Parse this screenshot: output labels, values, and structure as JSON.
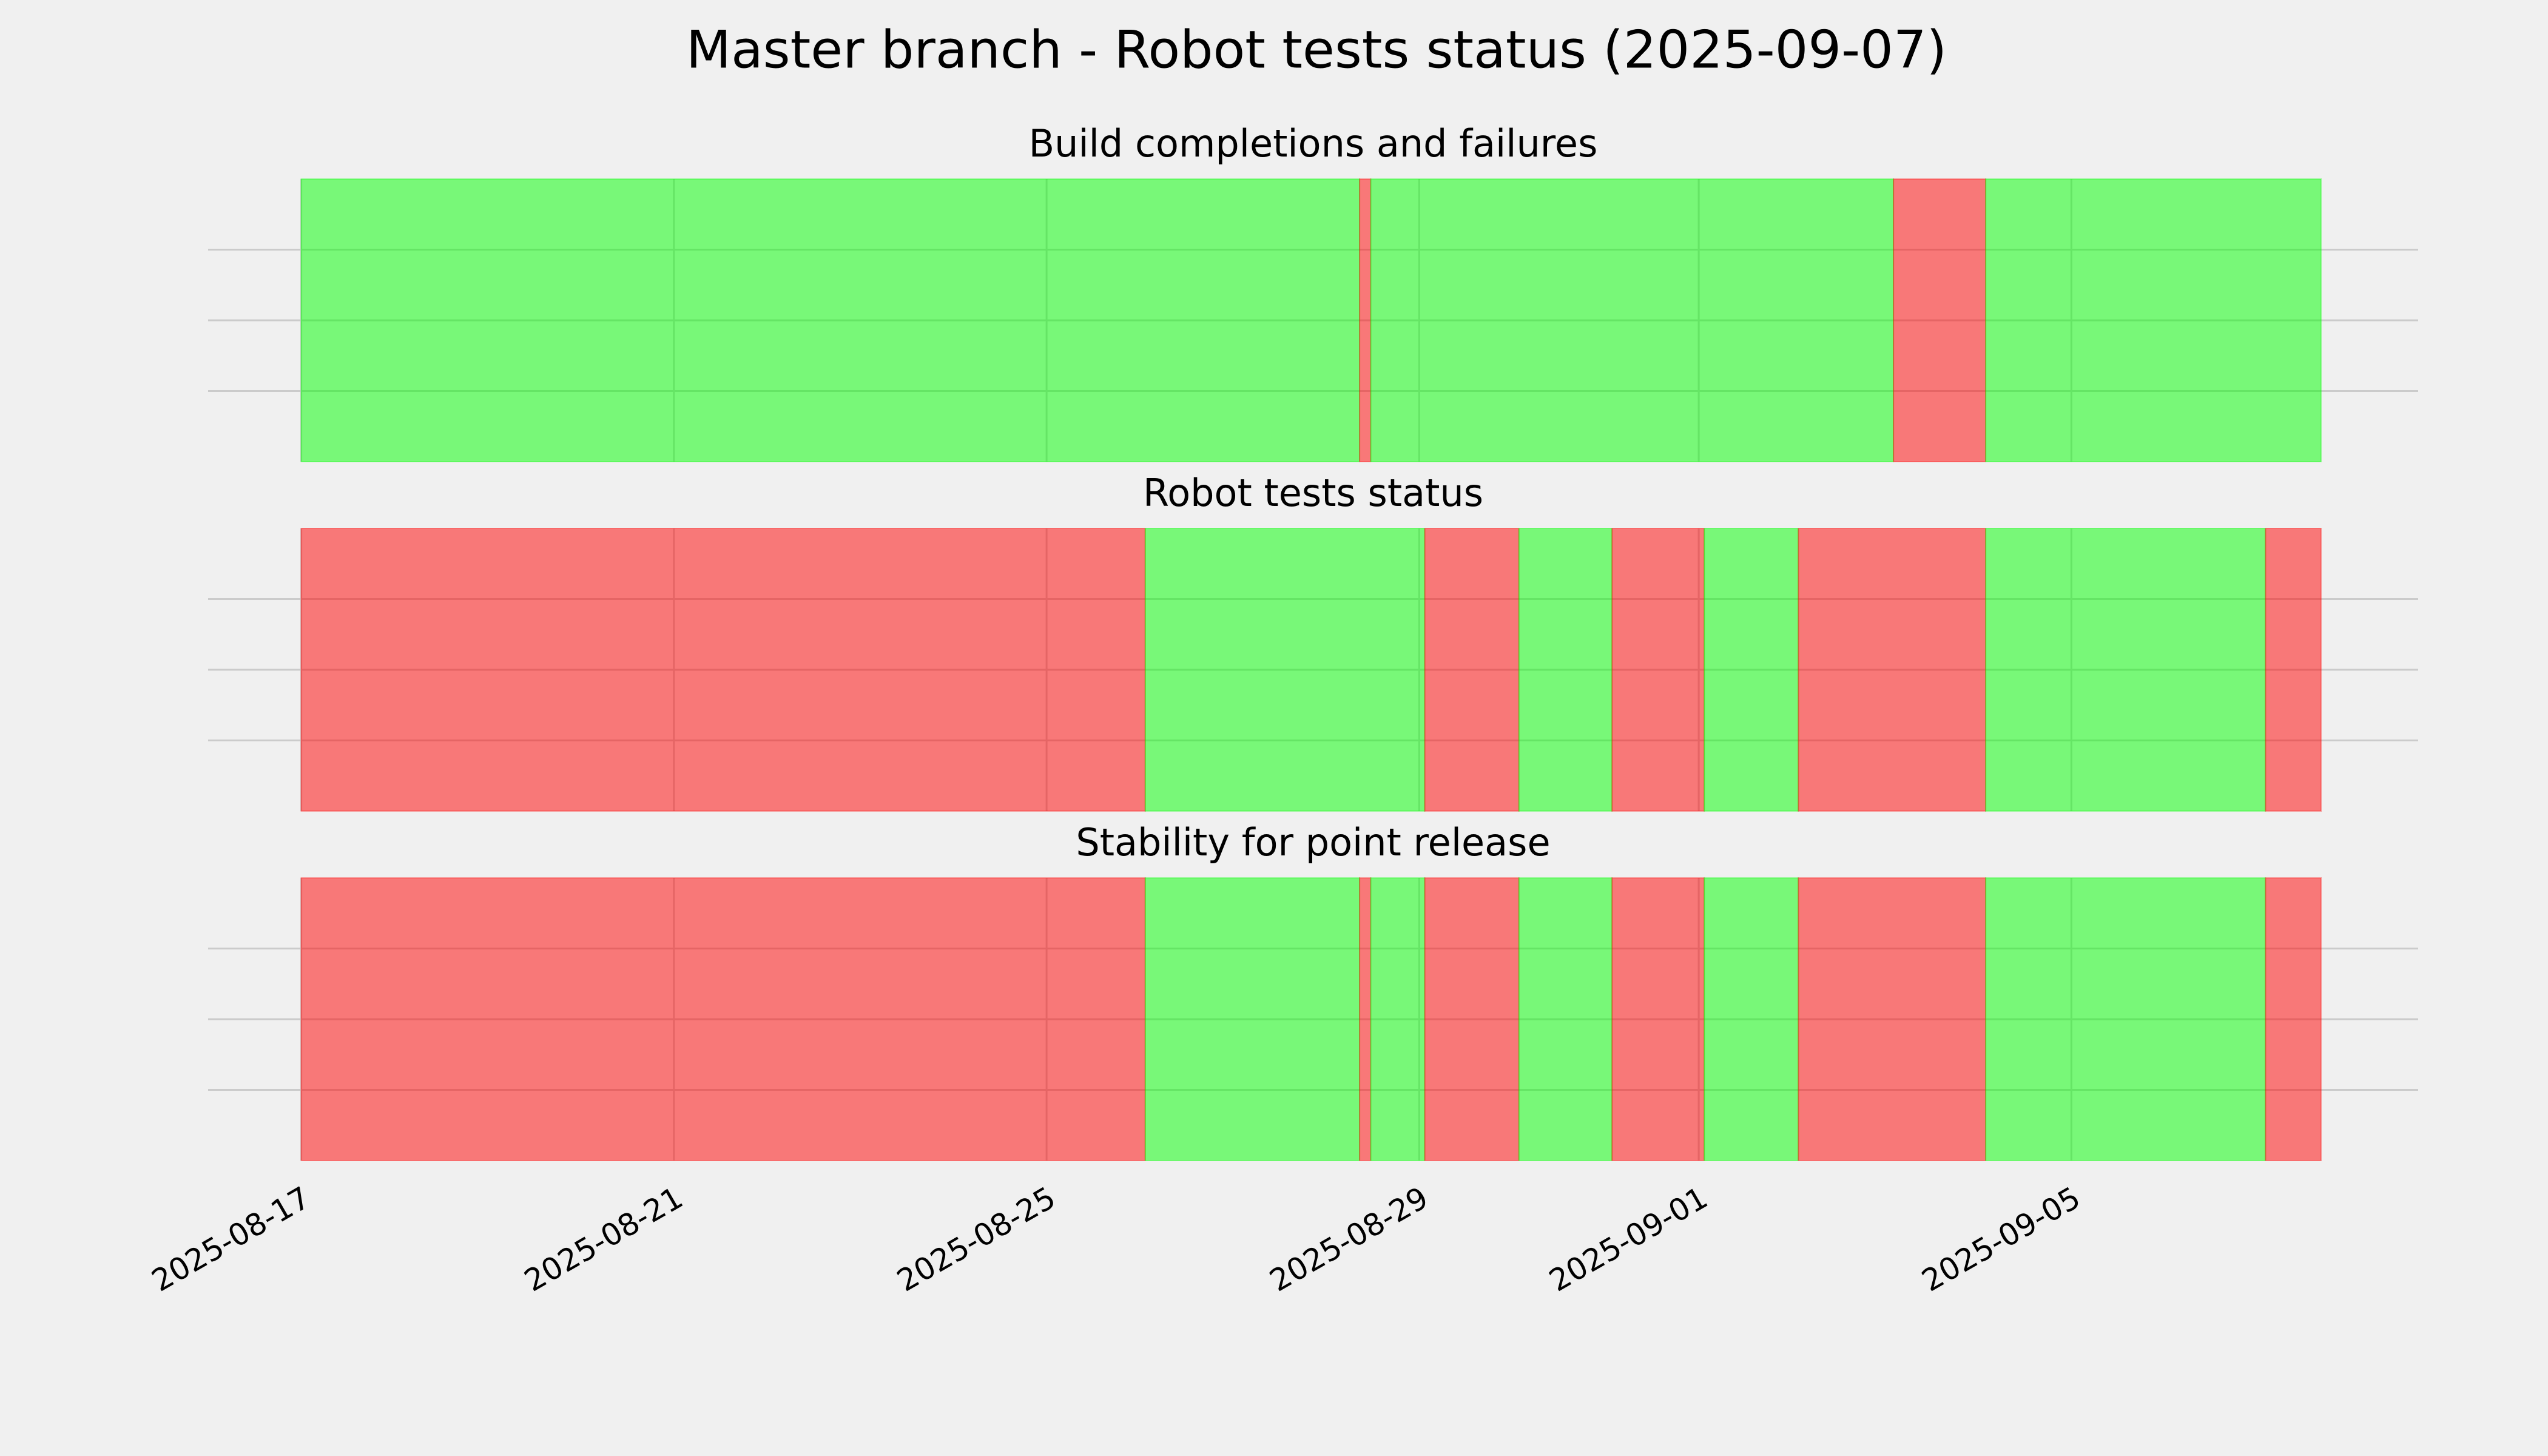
{
  "title": "Master branch - Robot tests status (2025-09-07)",
  "chart_data": [
    {
      "type": "timeline",
      "title": "Build completions and failures",
      "starts": [
        "2025-08-17T00:00",
        "2025-08-28T08:38",
        "2025-08-28T11:30",
        "2025-09-03T02:10",
        "2025-09-04T01:55"
      ],
      "ends": [
        "2025-08-28T08:38",
        "2025-08-28T11:30",
        "2025-09-03T02:10",
        "2025-09-04T01:55",
        "2025-09-07T16:20"
      ],
      "colors": [
        "#00ff00",
        "#ff0000",
        "#00ff00",
        "#ff0000",
        "#00ff00"
      ],
      "xlim": [
        "2025-08-16T00:00",
        "2025-09-08T17:20"
      ],
      "xticks": [
        "2025-08-17",
        "2025-08-21",
        "2025-08-25",
        "2025-08-29",
        "2025-09-01",
        "2025-09-05"
      ],
      "show_xtick_labels": false,
      "ylim": [
        0,
        1
      ],
      "yticks": [
        0.25,
        0.5,
        0.75
      ],
      "show_ytick_labels": false,
      "grid": true
    },
    {
      "type": "timeline",
      "title": "Robot tests status",
      "starts": [
        "2025-08-17T00:00",
        "2025-08-26T01:25",
        "2025-08-29T01:25",
        "2025-08-30T01:40",
        "2025-08-31T01:40",
        "2025-09-01T01:25",
        "2025-09-02T01:40",
        "2025-09-04T01:55",
        "2025-09-07T02:00"
      ],
      "ends": [
        "2025-08-26T01:25",
        "2025-08-29T01:25",
        "2025-08-30T01:40",
        "2025-08-31T01:40",
        "2025-09-01T01:25",
        "2025-09-02T01:40",
        "2025-09-04T01:55",
        "2025-09-07T02:00",
        "2025-09-07T16:20"
      ],
      "colors": [
        "#ff0000",
        "#00ff00",
        "#ff0000",
        "#00ff00",
        "#ff0000",
        "#00ff00",
        "#ff0000",
        "#00ff00",
        "#ff0000"
      ],
      "xlim": [
        "2025-08-16T00:00",
        "2025-09-08T17:20"
      ],
      "xticks": [
        "2025-08-17",
        "2025-08-21",
        "2025-08-25",
        "2025-08-29",
        "2025-09-01",
        "2025-09-05"
      ],
      "show_xtick_labels": false,
      "ylim": [
        0,
        1
      ],
      "yticks": [
        0.25,
        0.5,
        0.75
      ],
      "show_ytick_labels": false,
      "grid": true
    },
    {
      "type": "timeline",
      "title": "Stability for point release",
      "starts": [
        "2025-08-17T00:00",
        "2025-08-26T01:25",
        "2025-08-28T08:38",
        "2025-08-28T11:30",
        "2025-08-29T01:25",
        "2025-08-30T01:40",
        "2025-08-31T01:40",
        "2025-09-01T01:25",
        "2025-09-02T01:40",
        "2025-09-04T01:55",
        "2025-09-07T02:00"
      ],
      "ends": [
        "2025-08-26T01:25",
        "2025-08-28T08:38",
        "2025-08-28T11:30",
        "2025-08-29T01:25",
        "2025-08-30T01:40",
        "2025-08-31T01:40",
        "2025-09-01T01:25",
        "2025-09-02T01:40",
        "2025-09-04T01:55",
        "2025-09-07T02:00",
        "2025-09-07T16:20"
      ],
      "colors": [
        "#ff0000",
        "#00ff00",
        "#ff0000",
        "#00ff00",
        "#ff0000",
        "#00ff00",
        "#ff0000",
        "#00ff00",
        "#ff0000",
        "#00ff00",
        "#ff0000"
      ],
      "xlim": [
        "2025-08-16T00:00",
        "2025-09-08T17:20"
      ],
      "xticks": [
        "2025-08-17",
        "2025-08-21",
        "2025-08-25",
        "2025-08-29",
        "2025-09-01",
        "2025-09-05"
      ],
      "show_xtick_labels": true,
      "ylim": [
        0,
        1
      ],
      "yticks": [
        0.25,
        0.5,
        0.75
      ],
      "show_ytick_labels": false,
      "grid": true
    }
  ]
}
